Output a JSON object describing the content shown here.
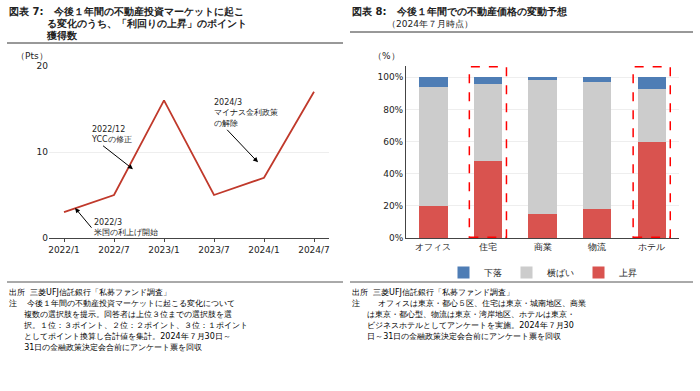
{
  "chart_data": [
    {
      "type": "line",
      "title": "図表 7:   今後１年間の不動産投資マーケットに起こ\n           る変化のうち、「利回りの上昇」のポイント\n           獲得数",
      "ylabel": "（Pts）",
      "x": [
        0,
        1,
        2,
        3,
        4,
        5
      ],
      "values": [
        3,
        5,
        16,
        5,
        7,
        17
      ],
      "color": "#c0392b",
      "xlim": [
        -0.3,
        5.3
      ],
      "xticks": [
        {
          "value": 0,
          "label": "2022/1"
        },
        {
          "value": 1,
          "label": "2022/7"
        },
        {
          "value": 2,
          "label": "2023/1"
        },
        {
          "value": 3,
          "label": "2023/7"
        },
        {
          "value": 4,
          "label": "2024/1"
        },
        {
          "value": 5,
          "label": "2024/7"
        }
      ],
      "ylim": [
        0,
        20
      ],
      "yticks": [
        0,
        10,
        20
      ],
      "grid": true,
      "annotations": [
        {
          "text": "2022/12\nYCCの修正",
          "x": 1.38,
          "y": 8.0,
          "text_x": 0.5,
          "text_y": 12.0
        },
        {
          "text": "2022/3\n米国の利上げ開始",
          "x": 0.22,
          "y": 3.5,
          "text_x": 0.55,
          "text_y": 1.2
        },
        {
          "text": "2024/3\nマイナス金利政策\nの解除",
          "x": 3.88,
          "y": 8.8,
          "text_x": 2.95,
          "text_y": 14.5
        }
      ],
      "source": "出所  三菱UFJ信託銀行「私募ファンド調査」",
      "notes": [
        "注    今後１年間の不動産投資マーケットに起こる変化について",
        "      複数の選択肢を提示。回答者は上位３位までの選択肢を選",
        "      択。１位：３ポイント、２位：２ポイント、３位：１ポイント",
        "      としてポイント換算し合計値を集計。2024年７月30日～",
        "      31日の金融政策決定会合前にアンケート票を回収"
      ]
    },
    {
      "type": "bar",
      "stacked": true,
      "title": "図表 8:   今後１年間での不動産価格の変動予想",
      "subtitle": "（2024年７月時点）",
      "ylabel": "（%）",
      "categories": [
        "オフィス",
        "住宅",
        "商業",
        "物流",
        "ホテル"
      ],
      "series": [
        {
          "name": "上昇",
          "color": "#d9534f",
          "values": [
            20,
            48,
            15,
            18,
            60
          ]
        },
        {
          "name": "横ばい",
          "color": "#cccccc",
          "values": [
            74,
            48,
            83,
            79,
            33
          ]
        },
        {
          "name": "下落",
          "color": "#4e7db5",
          "values": [
            6,
            4,
            2,
            3,
            7
          ]
        }
      ],
      "ylim": [
        0,
        107
      ],
      "yticks": [
        {
          "value": 0,
          "label": "0%"
        },
        {
          "value": 20,
          "label": "20%"
        },
        {
          "value": 40,
          "label": "40%"
        },
        {
          "value": 60,
          "label": "60%"
        },
        {
          "value": 80,
          "label": "80%"
        },
        {
          "value": 100,
          "label": "100%"
        }
      ],
      "grid": true,
      "legend": "bottom",
      "annotations": [
        {
          "type": "rect",
          "category": "住宅",
          "color": "red",
          "line_style": "dashed"
        },
        {
          "type": "rect",
          "category": "ホテル",
          "color": "red",
          "line_style": "dashed"
        }
      ],
      "source": "出所  三菱UFJ信託銀行「私募ファンド調査」",
      "notes": [
        "注       オフィスは東京・都心５区、住宅は東京・城南地区、商業",
        "      は東京・都心型、物流は東京・湾岸地区、ホテルは東京・",
        "      ビジネスホテルとしてアンケートを実施。2024年７月30",
        "      日～31日の金融政策決定会合前にアンケート票を回収"
      ]
    }
  ]
}
